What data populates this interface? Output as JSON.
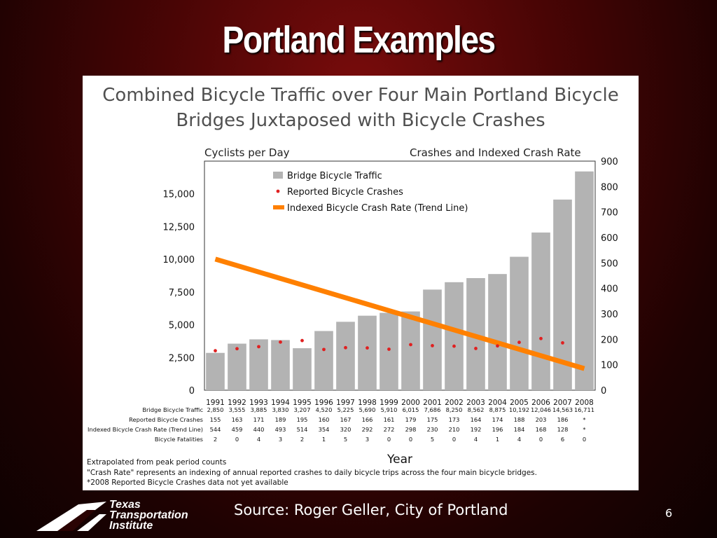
{
  "slide": {
    "title": "Portland Examples",
    "source": "Source: Roger Geller, City of Portland",
    "page_number": "6",
    "logo_lines": [
      "Texas",
      "Transportation",
      "Institute"
    ]
  },
  "chart_data": {
    "type": "bar",
    "title_lines": [
      "Combined Bicycle Traffic over Four Main Portland Bicycle",
      "Bridges Juxtaposed with Bicycle Crashes"
    ],
    "left_axis_title": "Cyclists per Day",
    "right_axis_title": "Crashes and Indexed Crash Rate",
    "xlabel": "Year",
    "categories": [
      "1991",
      "1992",
      "1993",
      "1994",
      "1995",
      "1996",
      "1997",
      "1998",
      "1999",
      "2000",
      "2001",
      "2002",
      "2003",
      "2004",
      "2005",
      "2006",
      "2007",
      "2008"
    ],
    "left_ylim": [
      0,
      17500
    ],
    "left_ticks": [
      "0",
      "2,500",
      "5,000",
      "7,500",
      "10,000",
      "12,500",
      "15,000"
    ],
    "left_tick_values": [
      0,
      2500,
      5000,
      7500,
      10000,
      12500,
      15000
    ],
    "right_ylim": [
      0,
      900
    ],
    "right_ticks": [
      "0",
      "100",
      "200",
      "300",
      "400",
      "500",
      "600",
      "700",
      "800",
      "900"
    ],
    "right_tick_values": [
      0,
      100,
      200,
      300,
      400,
      500,
      600,
      700,
      800,
      900
    ],
    "series": [
      {
        "name": "Bridge Bicycle Traffic",
        "kind": "bar",
        "axis": "left",
        "color": "#b3b3b3",
        "values": [
          2850,
          3555,
          3885,
          3830,
          3207,
          4520,
          5225,
          5690,
          5910,
          6015,
          7686,
          8250,
          8562,
          8875,
          10192,
          12046,
          14563,
          16711
        ]
      },
      {
        "name": "Reported Bicycle Crashes",
        "kind": "dot",
        "axis": "right",
        "color": "#e02020",
        "values": [
          155,
          163,
          171,
          189,
          195,
          160,
          167,
          166,
          161,
          179,
          175,
          173,
          164,
          174,
          188,
          203,
          186,
          null
        ]
      },
      {
        "name": "Indexed Bicycle Crash Rate (Trend Line)",
        "kind": "trend",
        "axis": "right",
        "color": "#ff8000",
        "start": [
          1991,
          515
        ],
        "end": [
          2008,
          85
        ]
      }
    ],
    "legend_position": "top-left",
    "grid": false,
    "table": {
      "rows": [
        {
          "label": "Bridge Bicycle Traffic",
          "values": [
            "2,850",
            "3,555",
            "3,885",
            "3,830",
            "3,207",
            "4,520",
            "5,225",
            "5,690",
            "5,910",
            "6,015",
            "7,686",
            "8,250",
            "8,562",
            "8,875",
            "10,192",
            "12,046",
            "14,563",
            "16,711"
          ]
        },
        {
          "label": "Reported Bicycle Crashes",
          "values": [
            "155",
            "163",
            "171",
            "189",
            "195",
            "160",
            "167",
            "166",
            "161",
            "179",
            "175",
            "173",
            "164",
            "174",
            "188",
            "203",
            "186",
            "*"
          ]
        },
        {
          "label": "Indexed Bicycle Crash Rate (Trend Line)",
          "values": [
            "544",
            "459",
            "440",
            "493",
            "514",
            "354",
            "320",
            "292",
            "272",
            "298",
            "230",
            "210",
            "192",
            "196",
            "184",
            "168",
            "128",
            "*"
          ]
        },
        {
          "label": "Bicycle Fatalities",
          "values": [
            "2",
            "0",
            "4",
            "3",
            "2",
            "1",
            "5",
            "3",
            "0",
            "0",
            "5",
            "0",
            "4",
            "1",
            "4",
            "0",
            "6",
            "0"
          ]
        }
      ]
    },
    "footnotes": [
      "Extrapolated from peak period counts",
      "\"Crash Rate\" represents an indexing of annual reported crashes to daily bicycle trips across the four main bicycle bridges.",
      "*2008 Reported Bicycle Crashes data not yet available"
    ]
  }
}
